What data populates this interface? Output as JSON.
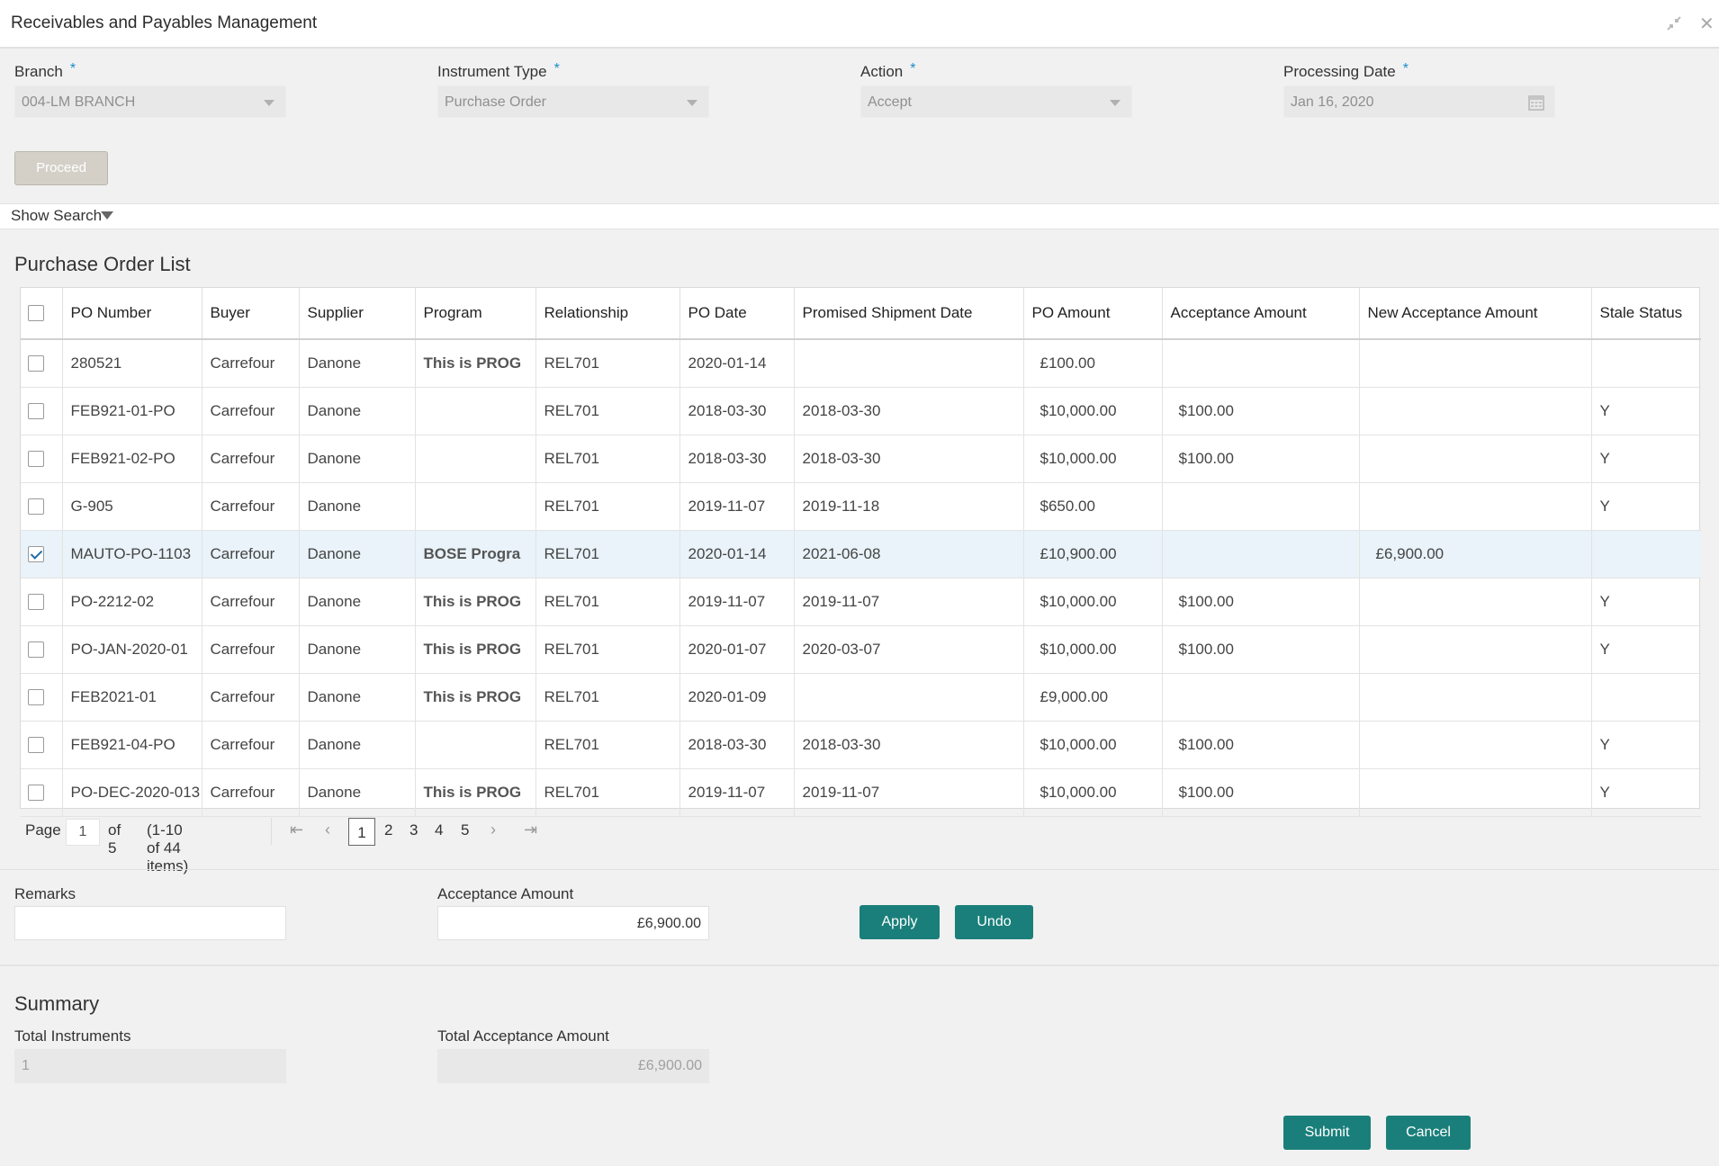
{
  "window": {
    "title": "Receivables and Payables Management"
  },
  "form": {
    "branch": {
      "label": "Branch",
      "required": "*",
      "value": "004-LM BRANCH"
    },
    "instrument_type": {
      "label": "Instrument Type",
      "required": "*",
      "value": "Purchase Order"
    },
    "action": {
      "label": "Action",
      "required": "*",
      "value": "Accept"
    },
    "processing_date": {
      "label": "Processing Date",
      "required": "*",
      "value": "Jan 16, 2020"
    },
    "proceed_label": "Proceed"
  },
  "search": {
    "toggle_label": "Show Search"
  },
  "list": {
    "title": "Purchase Order List",
    "columns": [
      "PO Number",
      "Buyer",
      "Supplier",
      "Program",
      "Relationship",
      "PO Date",
      "Promised Shipment Date",
      "PO Amount",
      "Acceptance Amount",
      "New Acceptance Amount",
      "Stale Status"
    ],
    "rows": [
      {
        "checked": false,
        "po_number": "280521",
        "buyer": "Carrefour",
        "supplier": "Danone",
        "program": "This is PROG",
        "relationship": "REL701",
        "po_date": "2020-01-14",
        "ship_date": "",
        "po_amount": "£100.00",
        "acceptance_amount": "",
        "new_acceptance_amount": "",
        "stale": ""
      },
      {
        "checked": false,
        "po_number": "FEB921-01-PO",
        "buyer": "Carrefour",
        "supplier": "Danone",
        "program": "",
        "relationship": "REL701",
        "po_date": "2018-03-30",
        "ship_date": "2018-03-30",
        "po_amount": "$10,000.00",
        "acceptance_amount": "$100.00",
        "new_acceptance_amount": "",
        "stale": "Y"
      },
      {
        "checked": false,
        "po_number": "FEB921-02-PO",
        "buyer": "Carrefour",
        "supplier": "Danone",
        "program": "",
        "relationship": "REL701",
        "po_date": "2018-03-30",
        "ship_date": "2018-03-30",
        "po_amount": "$10,000.00",
        "acceptance_amount": "$100.00",
        "new_acceptance_amount": "",
        "stale": "Y"
      },
      {
        "checked": false,
        "po_number": "G-905",
        "buyer": "Carrefour",
        "supplier": "Danone",
        "program": "",
        "relationship": "REL701",
        "po_date": "2019-11-07",
        "ship_date": "2019-11-18",
        "po_amount": "$650.00",
        "acceptance_amount": "",
        "new_acceptance_amount": "",
        "stale": "Y"
      },
      {
        "checked": true,
        "po_number": "MAUTO-PO-1103",
        "buyer": "Carrefour",
        "supplier": "Danone",
        "program": "BOSE Progra",
        "relationship": "REL701",
        "po_date": "2020-01-14",
        "ship_date": "2021-06-08",
        "po_amount": "£10,900.00",
        "acceptance_amount": "",
        "new_acceptance_amount": "£6,900.00",
        "stale": ""
      },
      {
        "checked": false,
        "po_number": "PO-2212-02",
        "buyer": "Carrefour",
        "supplier": "Danone",
        "program": "This is PROG",
        "relationship": "REL701",
        "po_date": "2019-11-07",
        "ship_date": "2019-11-07",
        "po_amount": "$10,000.00",
        "acceptance_amount": "$100.00",
        "new_acceptance_amount": "",
        "stale": "Y"
      },
      {
        "checked": false,
        "po_number": "PO-JAN-2020-01",
        "buyer": "Carrefour",
        "supplier": "Danone",
        "program": "This is PROG",
        "relationship": "REL701",
        "po_date": "2020-01-07",
        "ship_date": "2020-03-07",
        "po_amount": "$10,000.00",
        "acceptance_amount": "$100.00",
        "new_acceptance_amount": "",
        "stale": "Y"
      },
      {
        "checked": false,
        "po_number": "FEB2021-01",
        "buyer": "Carrefour",
        "supplier": "Danone",
        "program": "This is PROG",
        "relationship": "REL701",
        "po_date": "2020-01-09",
        "ship_date": "",
        "po_amount": "£9,000.00",
        "acceptance_amount": "",
        "new_acceptance_amount": "",
        "stale": ""
      },
      {
        "checked": false,
        "po_number": "FEB921-04-PO",
        "buyer": "Carrefour",
        "supplier": "Danone",
        "program": "",
        "relationship": "REL701",
        "po_date": "2018-03-30",
        "ship_date": "2018-03-30",
        "po_amount": "$10,000.00",
        "acceptance_amount": "$100.00",
        "new_acceptance_amount": "",
        "stale": "Y"
      },
      {
        "checked": false,
        "po_number": "PO-DEC-2020-013",
        "buyer": "Carrefour",
        "supplier": "Danone",
        "program": "This is PROG",
        "relationship": "REL701",
        "po_date": "2019-11-07",
        "ship_date": "2019-11-07",
        "po_amount": "$10,000.00",
        "acceptance_amount": "$100.00",
        "new_acceptance_amount": "",
        "stale": "Y"
      }
    ]
  },
  "pagination": {
    "page_label": "Page",
    "current_page": "1",
    "of_label": "of 5",
    "items_label": "(1-10 of 44 items)",
    "pages": [
      "1",
      "2",
      "3",
      "4",
      "5"
    ]
  },
  "edit": {
    "remarks_label": "Remarks",
    "remarks_value": "",
    "acceptance_label": "Acceptance Amount",
    "acceptance_value": "£6,900.00",
    "apply_label": "Apply",
    "undo_label": "Undo"
  },
  "summary": {
    "title": "Summary",
    "total_instruments_label": "Total Instruments",
    "total_instruments_value": "1",
    "total_acceptance_label": "Total Acceptance Amount",
    "total_acceptance_value": "£6,900.00"
  },
  "footer": {
    "submit_label": "Submit",
    "cancel_label": "Cancel"
  },
  "colors": {
    "accent": "#1a7f7a",
    "required": "#1a8dc8",
    "selected_row": "#e9f3f9"
  }
}
